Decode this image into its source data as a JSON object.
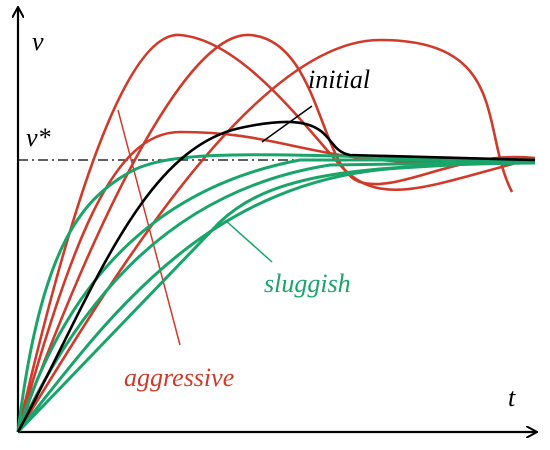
{
  "labels": {
    "y_axis": "v",
    "setpoint": "v*",
    "x_axis": "t",
    "initial": "initial",
    "sluggish": "sluggish",
    "aggressive": "aggressive"
  }
}
